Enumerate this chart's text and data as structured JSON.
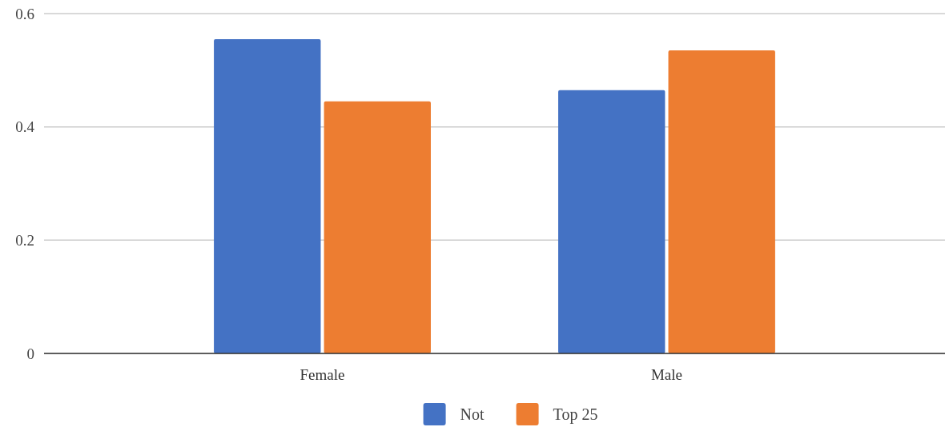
{
  "chart_data": {
    "type": "bar",
    "categories": [
      "Female",
      "Male"
    ],
    "series": [
      {
        "name": "Not",
        "color": "#4472c4",
        "values": [
          0.555,
          0.465
        ]
      },
      {
        "name": "Top 25",
        "color": "#ed7d31",
        "values": [
          0.445,
          0.535
        ]
      }
    ],
    "ylim": [
      0,
      0.6
    ],
    "yticks": [
      0,
      0.2,
      0.4,
      0.6
    ],
    "grid": "y",
    "legend": "bottom"
  }
}
